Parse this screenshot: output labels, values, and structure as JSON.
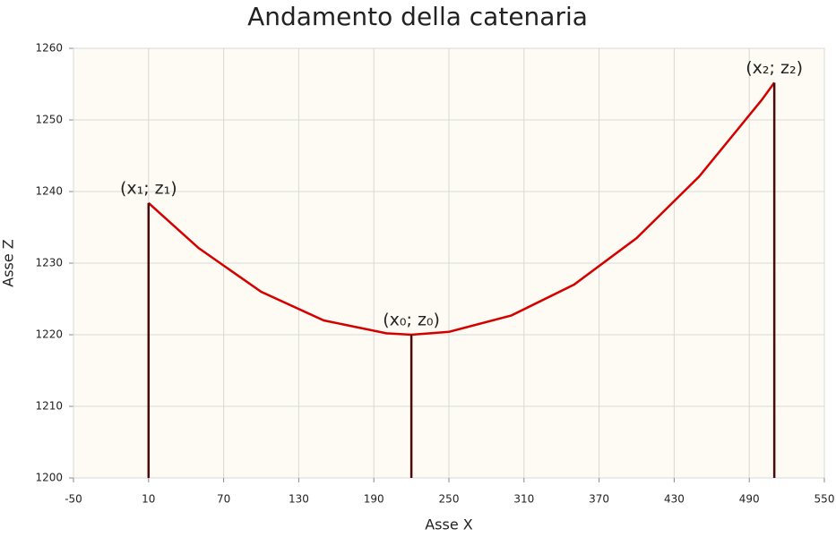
{
  "chart_data": {
    "type": "line",
    "title": "Andamento della catenaria",
    "x_label": "Asse X",
    "y_label": "Asse Z",
    "x": [
      10,
      50,
      100,
      150,
      200,
      220,
      250,
      300,
      350,
      400,
      450,
      500,
      510
    ],
    "series": [
      {
        "color": "#d40000",
        "values": [
          1238.4,
          1232.1,
          1226.0,
          1222.0,
          1220.2,
          1220,
          1220.4,
          1222.7,
          1227.0,
          1233.5,
          1242.1,
          1252.8,
          1255.2
        ]
      }
    ],
    "points": [
      {
        "x": 10,
        "z": 1238.4,
        "label": "(x₁;  z₁)"
      },
      {
        "x": 220,
        "z": 1220,
        "label": "(x₀;  z₀)"
      },
      {
        "x": 510,
        "z": 1255.2,
        "label": "(x₂;  z₂)"
      }
    ],
    "point_color": "#4a0a0a",
    "xlim": [
      -50,
      550
    ],
    "xticks": [
      -50,
      10,
      70,
      130,
      190,
      250,
      310,
      370,
      430,
      490,
      550
    ],
    "ylim": [
      1200,
      1260
    ],
    "yticks": [
      1200,
      1210,
      1220,
      1230,
      1240,
      1250,
      1260
    ],
    "grid": true
  }
}
